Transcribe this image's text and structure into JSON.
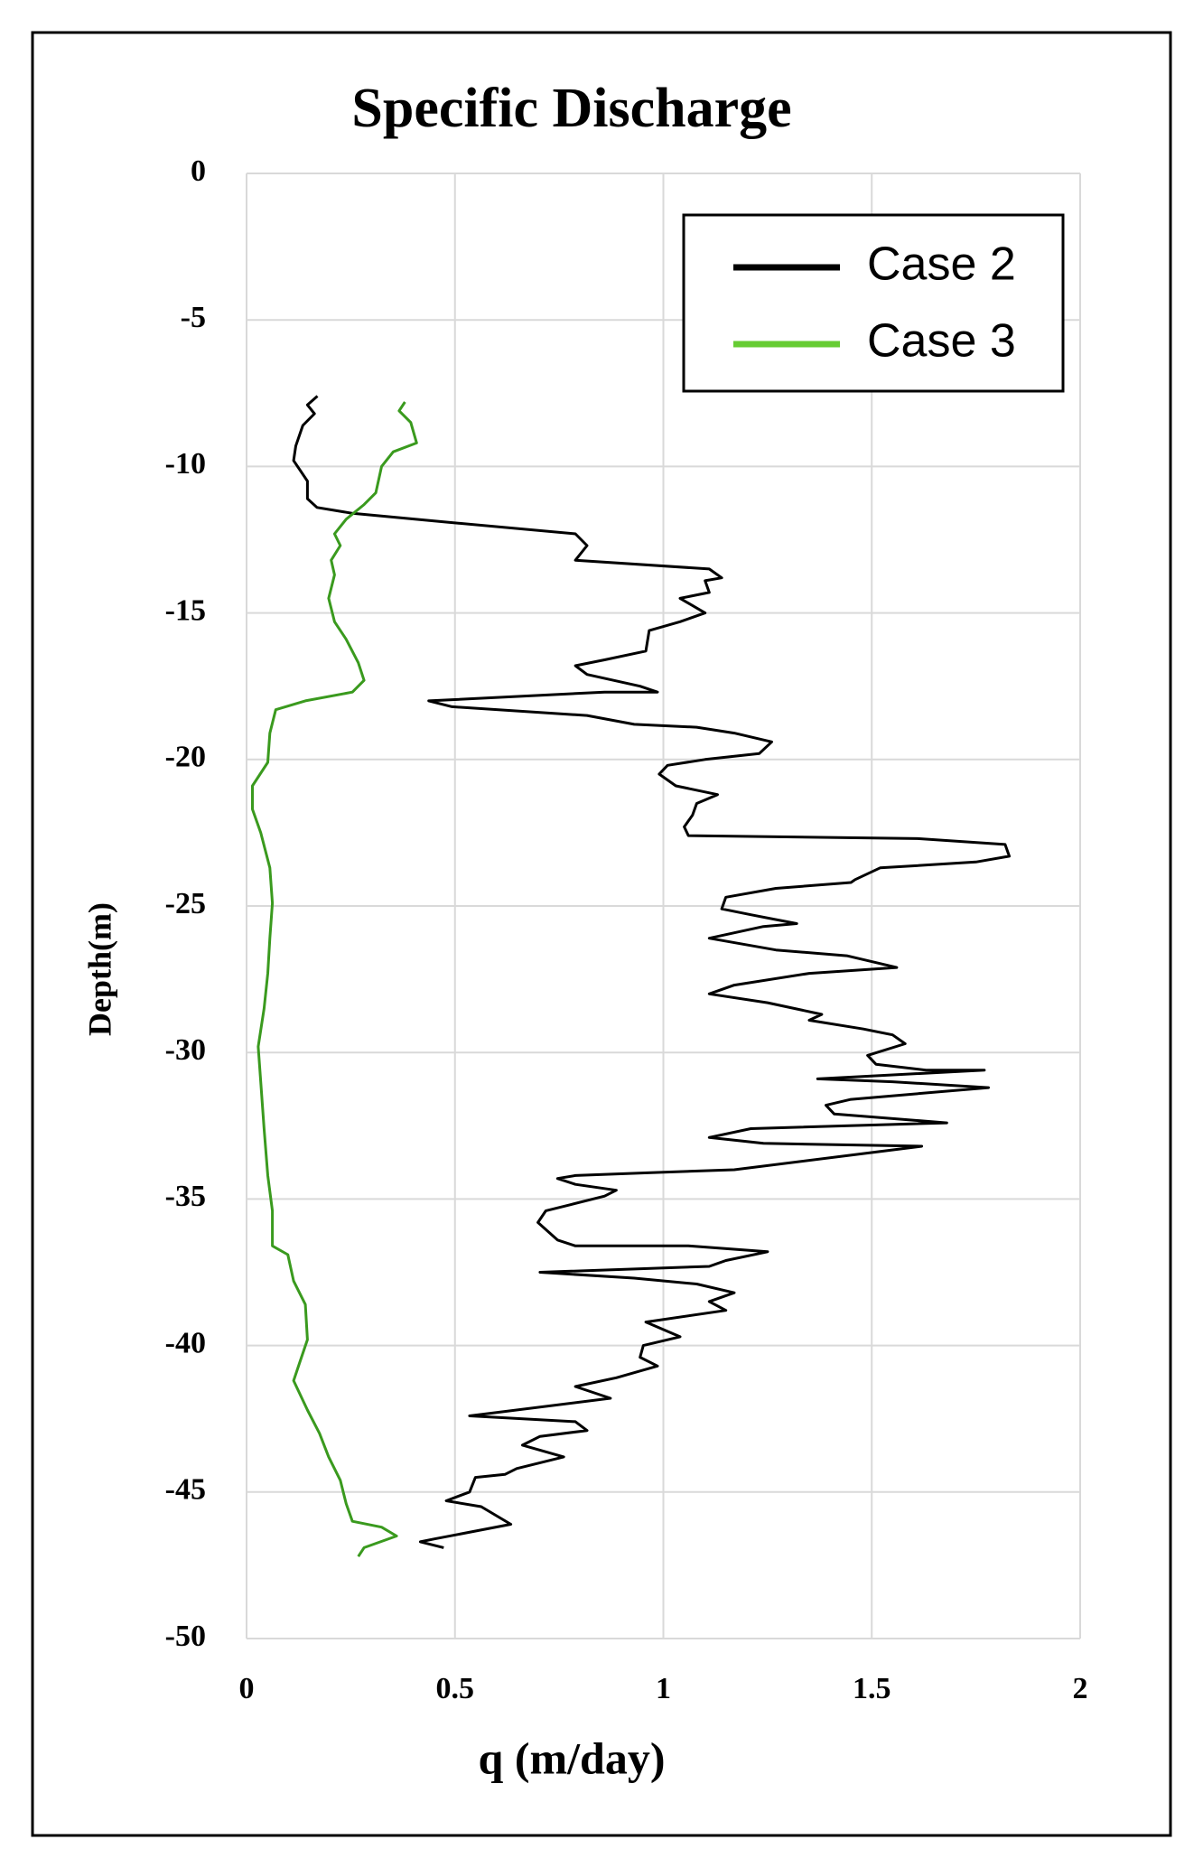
{
  "chart_data": {
    "type": "line",
    "title": "Specific Discharge",
    "x_label": "q (m/day)",
    "y_label": "Depth(m)",
    "xlim": [
      0,
      2
    ],
    "xticks": [
      0,
      0.5,
      1,
      1.5,
      2
    ],
    "ylim": [
      -50,
      0
    ],
    "yticks": [
      0,
      -5,
      -10,
      -15,
      -20,
      -25,
      -30,
      -35,
      -40,
      -45,
      -50
    ],
    "grid": true,
    "legend": "upper right",
    "series": [
      {
        "name": "Case 2",
        "color": "#000000",
        "x": [
          0.17,
          0.146,
          0.163,
          0.135,
          0.118,
          0.113,
          0.127,
          0.146,
          0.146,
          0.169,
          0.254,
          0.479,
          0.789,
          0.817,
          0.789,
          1.11,
          1.14,
          1.1,
          1.11,
          1.04,
          1.1,
          1.04,
          0.966,
          0.958,
          0.859,
          0.789,
          0.817,
          0.944,
          0.986,
          0.859,
          0.437,
          0.493,
          0.817,
          0.93,
          1.08,
          1.17,
          1.26,
          1.23,
          1.1,
          1.01,
          0.99,
          1.03,
          1.13,
          1.08,
          1.07,
          1.05,
          1.06,
          1.61,
          1.82,
          1.83,
          1.75,
          1.52,
          1.46,
          1.45,
          1.27,
          1.15,
          1.14,
          1.21,
          1.32,
          1.24,
          1.11,
          1.27,
          1.44,
          1.56,
          1.35,
          1.17,
          1.11,
          1.25,
          1.38,
          1.35,
          1.48,
          1.55,
          1.58,
          1.49,
          1.51,
          1.63,
          1.77,
          1.37,
          1.55,
          1.78,
          1.45,
          1.39,
          1.41,
          1.68,
          1.21,
          1.11,
          1.24,
          1.62,
          1.17,
          0.97,
          0.789,
          0.746,
          0.789,
          0.887,
          0.859,
          0.775,
          0.718,
          0.699,
          0.746,
          0.789,
          1.06,
          1.25,
          1.15,
          1.11,
          0.704,
          0.93,
          1.08,
          1.17,
          1.11,
          1.15,
          0.958,
          1.04,
          0.952,
          0.944,
          0.986,
          0.887,
          0.789,
          0.873,
          0.535,
          0.789,
          0.817,
          0.704,
          0.662,
          0.761,
          0.648,
          0.62,
          0.549,
          0.535,
          0.479,
          0.563,
          0.634,
          0.451,
          0.417,
          0.473
        ],
        "values": [
          -7.6,
          -7.9,
          -8.2,
          -8.6,
          -9.3,
          -9.8,
          -10.1,
          -10.5,
          -11.1,
          -11.4,
          -11.6,
          -11.9,
          -12.3,
          -12.7,
          -13.2,
          -13.5,
          -13.8,
          -13.9,
          -14.3,
          -14.5,
          -15.0,
          -15.3,
          -15.6,
          -16.3,
          -16.6,
          -16.8,
          -17.1,
          -17.5,
          -17.7,
          -17.7,
          -18.0,
          -18.2,
          -18.5,
          -18.8,
          -18.9,
          -19.1,
          -19.4,
          -19.8,
          -20.0,
          -20.2,
          -20.5,
          -20.9,
          -21.2,
          -21.5,
          -21.9,
          -22.3,
          -22.6,
          -22.7,
          -22.9,
          -23.3,
          -23.5,
          -23.7,
          -24.1,
          -24.2,
          -24.4,
          -24.7,
          -25.1,
          -25.3,
          -25.6,
          -25.7,
          -26.1,
          -26.5,
          -26.7,
          -27.1,
          -27.3,
          -27.7,
          -28.0,
          -28.3,
          -28.7,
          -28.9,
          -29.2,
          -29.4,
          -29.7,
          -30.1,
          -30.4,
          -30.6,
          -30.6,
          -30.9,
          -31.0,
          -31.2,
          -31.6,
          -31.8,
          -32.1,
          -32.4,
          -32.6,
          -32.9,
          -33.1,
          -33.2,
          -34.0,
          -34.1,
          -34.2,
          -34.3,
          -34.5,
          -34.7,
          -34.9,
          -35.2,
          -35.4,
          -35.8,
          -36.4,
          -36.6,
          -36.6,
          -36.8,
          -37.1,
          -37.3,
          -37.5,
          -37.7,
          -37.9,
          -38.2,
          -38.5,
          -38.8,
          -39.2,
          -39.7,
          -40.0,
          -40.4,
          -40.7,
          -41.1,
          -41.4,
          -41.8,
          -42.4,
          -42.6,
          -42.9,
          -43.1,
          -43.4,
          -43.8,
          -44.2,
          -44.4,
          -44.5,
          -45.0,
          -45.3,
          -45.5,
          -46.1,
          -46.6,
          -46.7,
          -46.9
        ]
      },
      {
        "name": "Case 3",
        "color": "#3a9a1e",
        "x": [
          0.38,
          0.366,
          0.394,
          0.408,
          0.352,
          0.324,
          0.31,
          0.282,
          0.239,
          0.211,
          0.225,
          0.203,
          0.211,
          0.197,
          0.211,
          0.239,
          0.268,
          0.282,
          0.254,
          0.141,
          0.07,
          0.056,
          0.051,
          0.014,
          0.014,
          0.034,
          0.056,
          0.062,
          0.056,
          0.051,
          0.042,
          0.028,
          0.034,
          0.042,
          0.051,
          0.062,
          0.062,
          0.099,
          0.113,
          0.141,
          0.146,
          0.127,
          0.113,
          0.146,
          0.175,
          0.197,
          0.225,
          0.239,
          0.254,
          0.324,
          0.36,
          0.282,
          0.268
        ],
        "values": [
          -7.8,
          -8.1,
          -8.5,
          -9.2,
          -9.5,
          -10.0,
          -10.9,
          -11.3,
          -11.8,
          -12.3,
          -12.7,
          -13.2,
          -13.7,
          -14.5,
          -15.3,
          -15.9,
          -16.7,
          -17.3,
          -17.7,
          -18.0,
          -18.3,
          -19.1,
          -20.1,
          -20.9,
          -21.7,
          -22.5,
          -23.7,
          -24.9,
          -26.1,
          -27.3,
          -28.5,
          -29.8,
          -31.0,
          -32.6,
          -34.2,
          -35.4,
          -36.6,
          -36.9,
          -37.8,
          -38.6,
          -39.8,
          -40.6,
          -41.2,
          -42.2,
          -43.0,
          -43.8,
          -44.6,
          -45.4,
          -46.0,
          -46.2,
          -46.5,
          -46.9,
          -47.2
        ]
      }
    ]
  }
}
